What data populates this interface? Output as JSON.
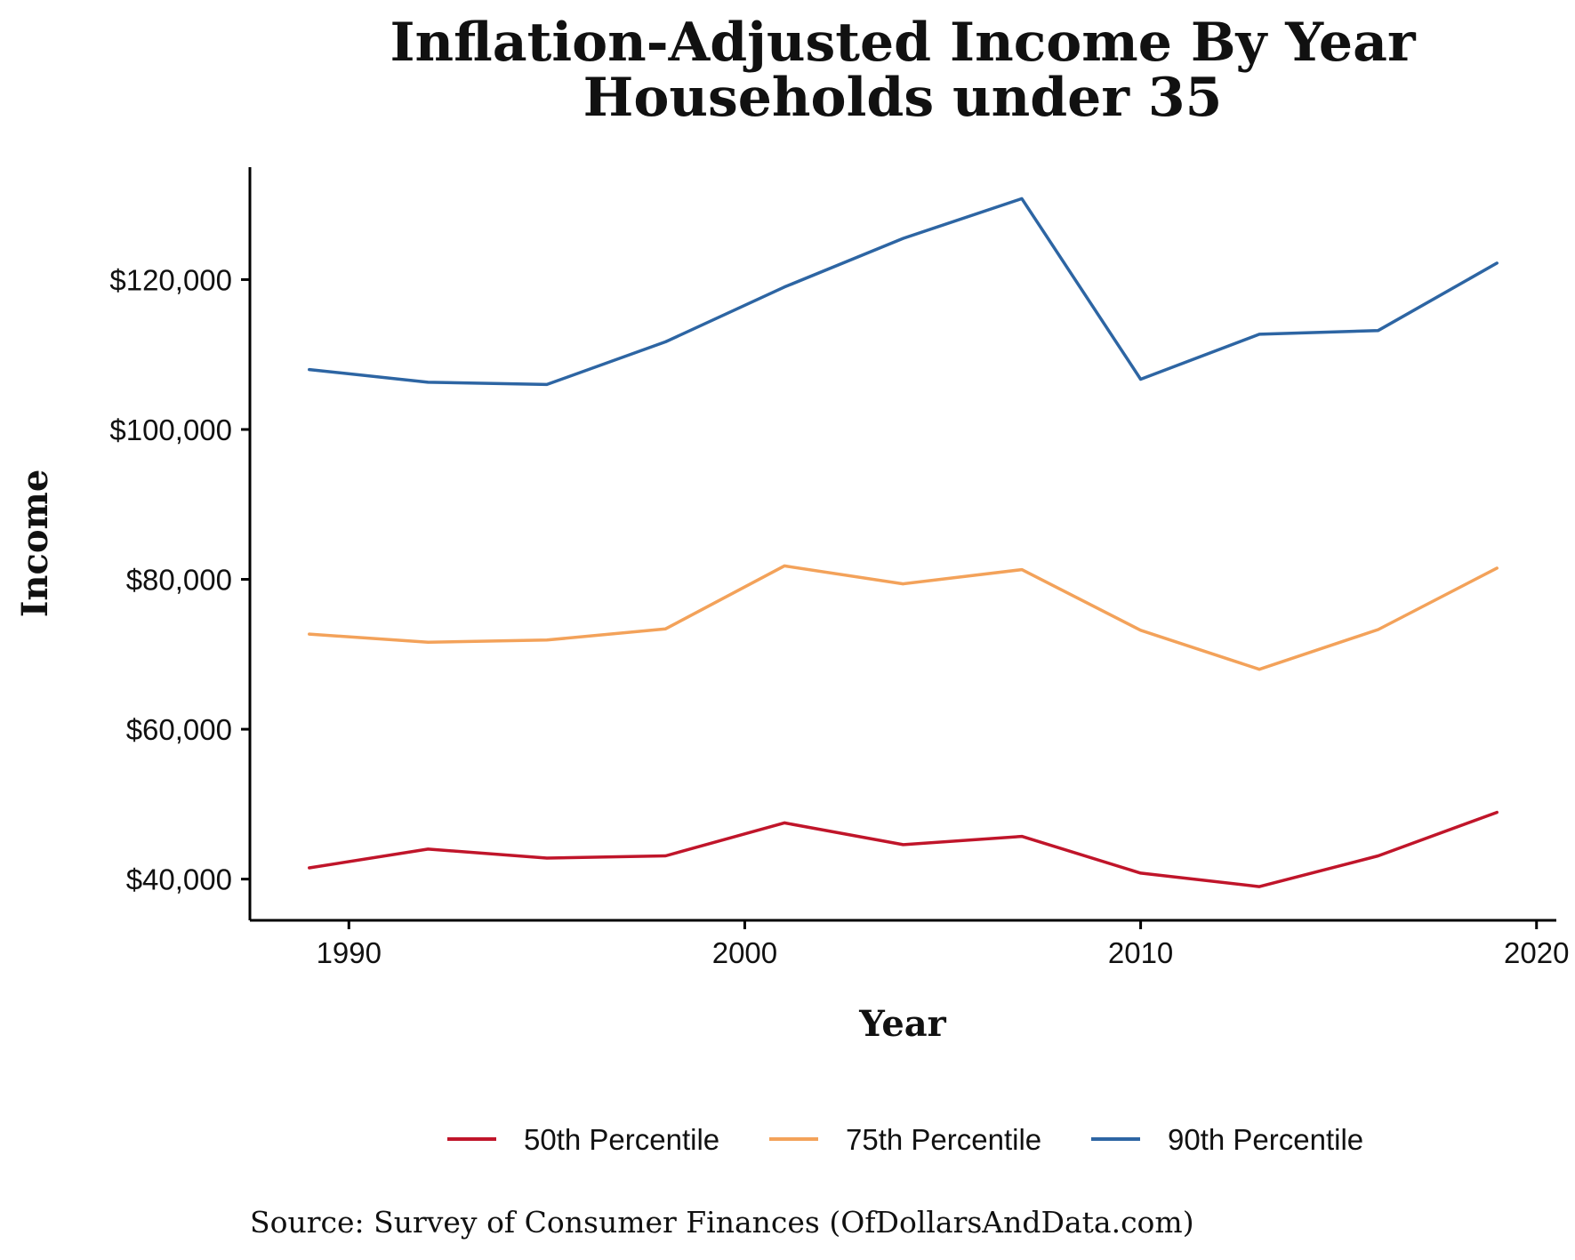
{
  "chart_data": {
    "type": "line",
    "title": "Inflation-Adjusted Income By Year",
    "subtitle": "Households under 35",
    "xlabel": "Year",
    "ylabel": "Income",
    "xlim": [
      1987.5,
      2020.5
    ],
    "ylim": [
      34500,
      135000
    ],
    "x_ticks": [
      1990,
      2000,
      2010,
      2020
    ],
    "x_tick_labels": [
      "1990",
      "2000",
      "2010",
      "2020"
    ],
    "y_ticks": [
      40000,
      60000,
      80000,
      100000,
      120000
    ],
    "y_tick_labels": [
      "$40,000",
      "$60,000",
      "$80,000",
      "$100,000",
      "$120,000"
    ],
    "grid": false,
    "legend_position": "bottom",
    "x": [
      1989,
      1992,
      1995,
      1998,
      2001,
      2004,
      2007,
      2010,
      2013,
      2016,
      2019
    ],
    "series": [
      {
        "name": "50th Percentile",
        "color": "#c0152a",
        "values": [
          41500,
          44000,
          42800,
          43100,
          47500,
          44600,
          45700,
          40800,
          39000,
          43100,
          48900
        ]
      },
      {
        "name": "75th Percentile",
        "color": "#f3a25a",
        "values": [
          72700,
          71600,
          71900,
          73400,
          81800,
          79400,
          81300,
          73200,
          68000,
          73300,
          81500
        ]
      },
      {
        "name": "90th Percentile",
        "color": "#2d65a3",
        "values": [
          108000,
          106300,
          106000,
          111700,
          119000,
          125500,
          130800,
          106700,
          112700,
          113200,
          122200
        ]
      }
    ],
    "source": "Source:  Survey of Consumer Finances (OfDollarsAndData.com)"
  }
}
